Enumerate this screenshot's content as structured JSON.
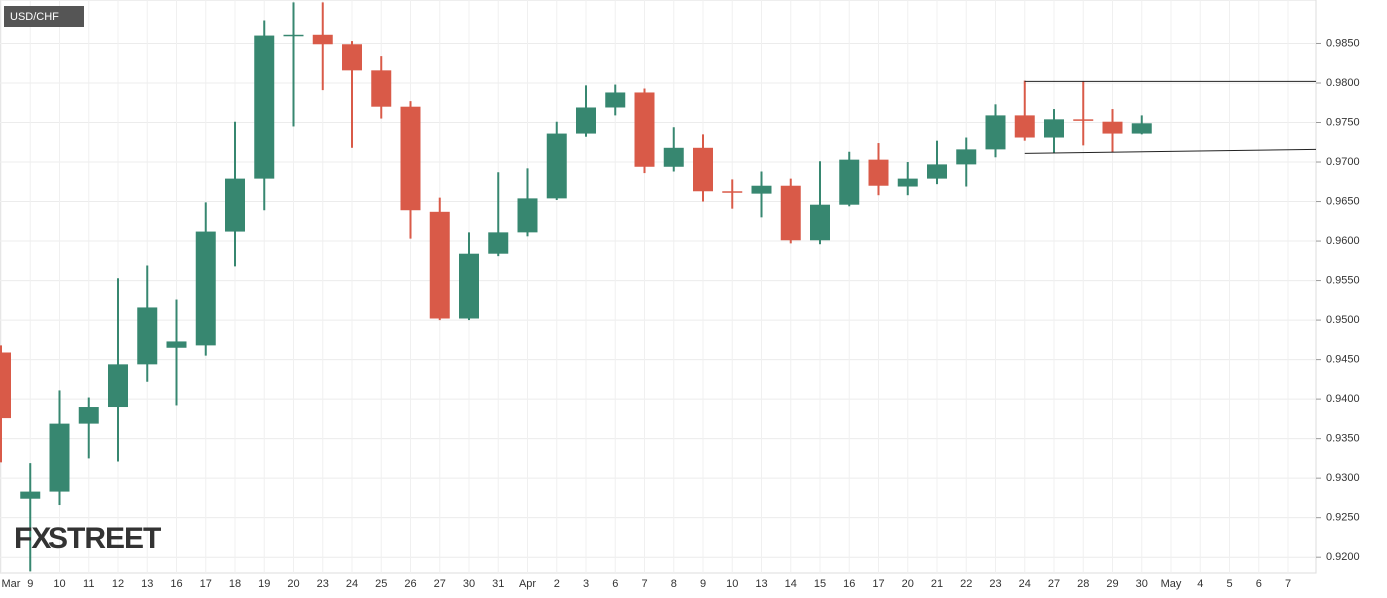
{
  "chart_data": {
    "type": "candlestick",
    "title": "USD/CHF",
    "logo": [
      "FX",
      "STREET"
    ],
    "categories": [
      "Mar",
      "9",
      "10",
      "11",
      "12",
      "13",
      "16",
      "17",
      "18",
      "19",
      "20",
      "23",
      "24",
      "25",
      "26",
      "27",
      "30",
      "31",
      "Apr",
      "2",
      "3",
      "6",
      "7",
      "8",
      "9",
      "10",
      "13",
      "14",
      "15",
      "16",
      "17",
      "20",
      "21",
      "22",
      "23",
      "24",
      "27",
      "28",
      "29",
      "30",
      "May",
      "4",
      "5",
      "6",
      "7"
    ],
    "open": [
      0.9459,
      0.9274,
      0.9283,
      0.9369,
      0.939,
      0.9444,
      0.9465,
      0.9468,
      0.9612,
      0.9679,
      0.986,
      0.9861,
      0.9849,
      0.9816,
      0.977,
      0.9637,
      0.9502,
      0.9584,
      0.9611,
      0.9654,
      0.9736,
      0.9769,
      0.9788,
      0.9694,
      0.9718,
      0.9663,
      0.966,
      0.967,
      0.9601,
      0.9646,
      0.9703,
      0.9669,
      0.9679,
      0.9697,
      0.9716,
      0.9759,
      0.9731,
      0.9754,
      0.9751,
      0.9736,
      null,
      null,
      null,
      null,
      null
    ],
    "high": [
      0.9468,
      0.9319,
      0.9411,
      0.9402,
      0.9553,
      0.9569,
      0.9526,
      0.9649,
      0.9751,
      0.9879,
      0.9902,
      0.9902,
      0.9853,
      0.9834,
      0.9777,
      0.9655,
      0.9611,
      0.9687,
      0.9692,
      0.9751,
      0.9797,
      0.9798,
      0.9793,
      0.9744,
      0.9735,
      0.9678,
      0.9688,
      0.9679,
      0.9701,
      0.9713,
      0.9724,
      0.97,
      0.9727,
      0.9731,
      0.9773,
      0.9803,
      0.9767,
      0.9802,
      0.9767,
      0.9759,
      null,
      null,
      null,
      null,
      null
    ],
    "low": [
      0.932,
      0.9182,
      0.9266,
      0.9325,
      0.9321,
      0.9422,
      0.9392,
      0.9455,
      0.9568,
      0.9639,
      0.9745,
      0.9791,
      0.9718,
      0.9755,
      0.9603,
      0.95,
      0.95,
      0.9581,
      0.9606,
      0.9652,
      0.9732,
      0.9759,
      0.9686,
      0.9688,
      0.965,
      0.9641,
      0.963,
      0.9597,
      0.9596,
      0.9644,
      0.9658,
      0.9658,
      0.9672,
      0.9669,
      0.9706,
      0.9727,
      0.9712,
      0.9721,
      0.9712,
      0.9735,
      null,
      null,
      null,
      null,
      null
    ],
    "close": [
      0.9376,
      0.9283,
      0.9369,
      0.939,
      0.9444,
      0.9516,
      0.9473,
      0.9612,
      0.9679,
      0.986,
      0.9861,
      0.9849,
      0.9816,
      0.977,
      0.9639,
      0.9502,
      0.9584,
      0.9611,
      0.9654,
      0.9736,
      0.9769,
      0.9788,
      0.9694,
      0.9718,
      0.9663,
      0.9662,
      0.967,
      0.9601,
      0.9646,
      0.9703,
      0.967,
      0.9679,
      0.9697,
      0.9716,
      0.9759,
      0.9731,
      0.9754,
      0.9753,
      0.9736,
      0.9749,
      null,
      null,
      null,
      null,
      null
    ],
    "up_color": "#378770",
    "down_color": "#d95a48",
    "ylim": [
      0.918,
      0.9905
    ],
    "yticks": [
      {
        "value": 0.92,
        "label": "0.9200"
      },
      {
        "value": 0.925,
        "label": "0.9250"
      },
      {
        "value": 0.93,
        "label": "0.9300"
      },
      {
        "value": 0.935,
        "label": "0.9350"
      },
      {
        "value": 0.94,
        "label": "0.9400"
      },
      {
        "value": 0.945,
        "label": "0.9450"
      },
      {
        "value": 0.95,
        "label": "0.9500"
      },
      {
        "value": 0.955,
        "label": "0.9550"
      },
      {
        "value": 0.96,
        "label": "0.9600"
      },
      {
        "value": 0.965,
        "label": "0.9650"
      },
      {
        "value": 0.97,
        "label": "0.9700"
      },
      {
        "value": 0.975,
        "label": "0.9750"
      },
      {
        "value": 0.98,
        "label": "0.9800"
      },
      {
        "value": 0.985,
        "label": "0.9850"
      }
    ],
    "grid": true,
    "lines": [
      {
        "start": 35,
        "values": [
          0.9802,
          0.9802
        ]
      },
      {
        "start": 35,
        "values": [
          0.9711,
          0.9716
        ]
      }
    ]
  }
}
